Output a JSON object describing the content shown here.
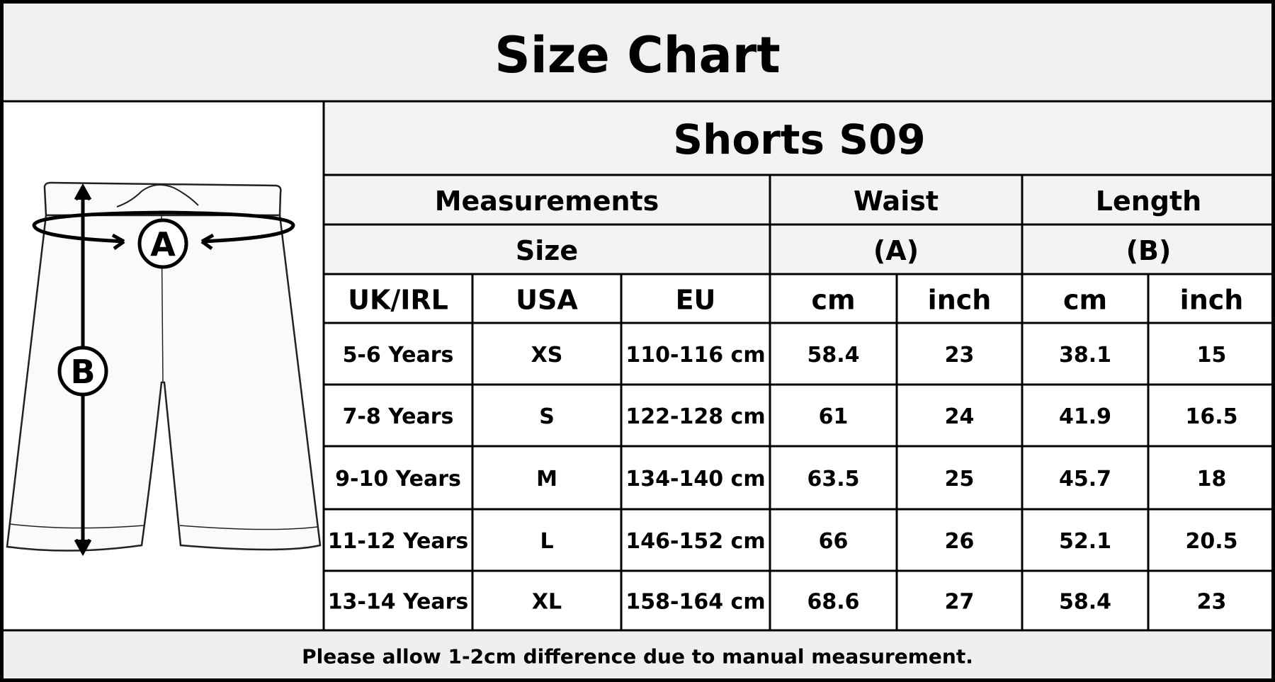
{
  "title": "Size Chart",
  "diagram": {
    "labels": [
      "A",
      "B"
    ]
  },
  "table": {
    "title": "Shorts S09",
    "header_top": [
      "Measurements",
      "Waist",
      "Length"
    ],
    "header_mid": [
      "Size",
      "(A)",
      "(B)"
    ],
    "columns": [
      "UK/IRL",
      "USA",
      "EU",
      "cm",
      "inch",
      "cm",
      "inch"
    ],
    "rows": [
      [
        "5-6 Years",
        "XS",
        "110-116 cm",
        58.4,
        23,
        38.1,
        15
      ],
      [
        "7-8 Years",
        "S",
        "122-128 cm",
        61,
        24,
        41.9,
        16.5
      ],
      [
        "9-10 Years",
        "M",
        "134-140 cm",
        63.5,
        25,
        45.7,
        18
      ],
      [
        "11-12 Years",
        "L",
        "146-152 cm",
        66,
        26,
        52.1,
        20.5
      ],
      [
        "13-14 Years",
        "XL",
        "158-164 cm",
        68.6,
        27,
        58.4,
        23
      ]
    ]
  },
  "footer": "Please allow 1-2cm difference due to manual measurement."
}
